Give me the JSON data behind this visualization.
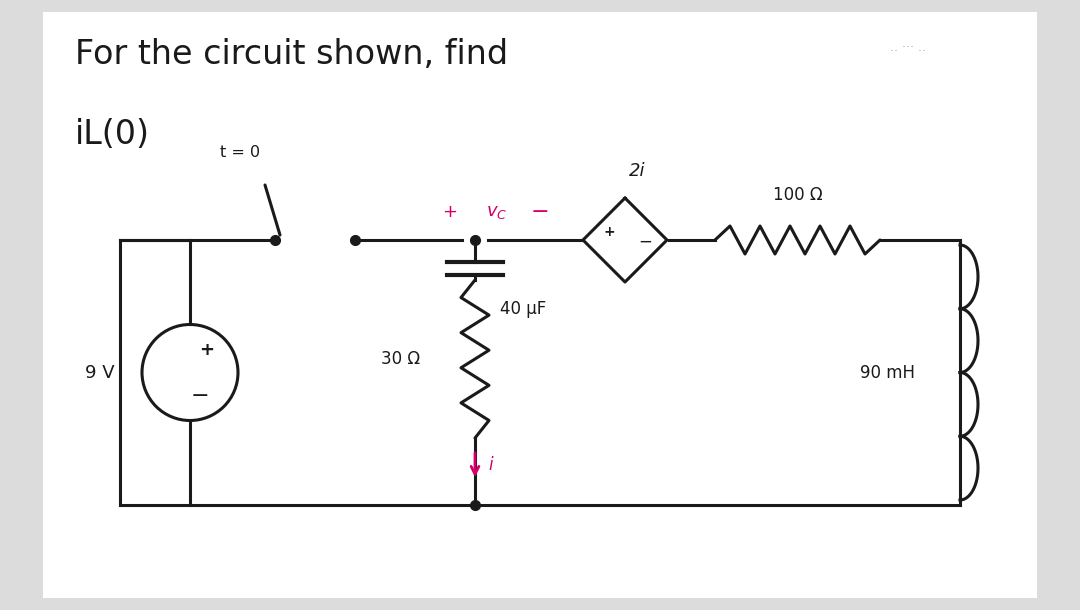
{
  "bg_color": "#dcdcdc",
  "panel_color": "#ffffff",
  "title_line1": "For the circuit shown, find",
  "title_line2": "iL(0)",
  "title_fontsize": 24,
  "circuit_line_color": "#1a1a1a",
  "pink_color": "#d4006a",
  "wire_lw": 2.2,
  "voltage_source": "9 V",
  "resistor1": "30 Ω",
  "resistor2": "100 Ω",
  "capacitor": "40 μF",
  "inductor": "90 mH",
  "dep_source": "2i",
  "switch_label": "t = 0",
  "current_label": "i",
  "note": ".. ··· .."
}
